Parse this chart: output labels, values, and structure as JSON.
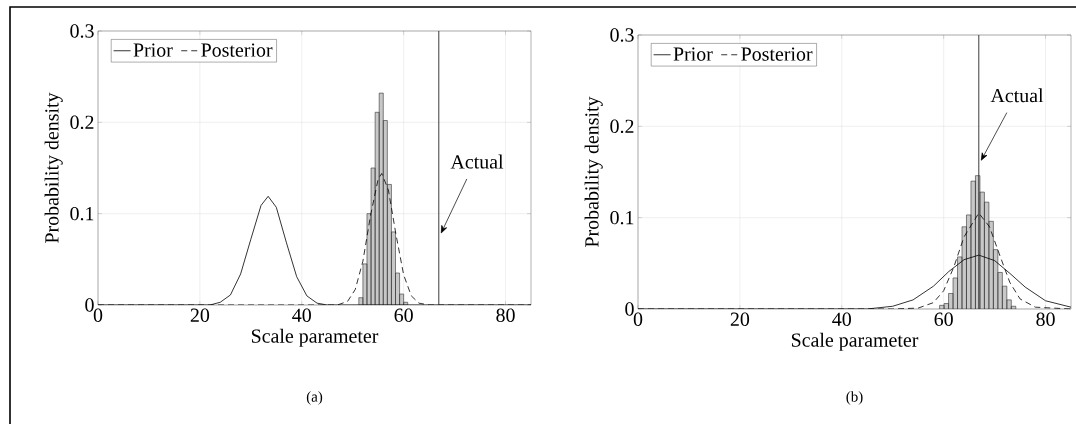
{
  "chart_data": [
    {
      "type": "histogram",
      "bins": [
        51.2,
        52.0,
        52.8,
        53.6,
        54.4,
        55.2,
        56.0,
        56.8,
        57.6,
        58.4,
        59.2,
        60.0,
        60.8
      ],
      "values": [
        0.008,
        0.045,
        0.1,
        0.15,
        0.211,
        0.232,
        0.202,
        0.132,
        0.08,
        0.035,
        0.012,
        0.003
      ],
      "color": "#c8c8c8",
      "series": [
        {
          "type": "line",
          "name": "Prior",
          "color": "#000000",
          "line_style": "solid",
          "x": [
            0,
            20,
            22,
            24,
            26,
            28,
            30,
            32,
            33.4,
            35,
            37,
            39,
            41,
            43,
            45,
            48,
            85
          ],
          "values": [
            0,
            0,
            0,
            0.003,
            0.011,
            0.034,
            0.072,
            0.109,
            0.119,
            0.107,
            0.068,
            0.031,
            0.01,
            0.002,
            0,
            0,
            0
          ]
        },
        {
          "type": "line",
          "name": "Posterior",
          "color": "#000000",
          "line_style": "dashed",
          "x": [
            0,
            45,
            47,
            49,
            50.5,
            52,
            53.5,
            55,
            55.7,
            57,
            58.5,
            60,
            61.5,
            63,
            65,
            85
          ],
          "values": [
            0,
            0,
            0,
            0.004,
            0.017,
            0.048,
            0.098,
            0.138,
            0.144,
            0.126,
            0.077,
            0.033,
            0.01,
            0.002,
            0,
            0
          ]
        }
      ],
      "ref_lines": [
        {
          "axis": "x",
          "value": 66.9,
          "label": "Actual"
        }
      ],
      "xlabel": "Scale parameter",
      "ylabel": "Probability density",
      "xlim": [
        0,
        85
      ],
      "ylim": [
        0,
        0.3
      ],
      "xticks": [
        0,
        20,
        40,
        60,
        80
      ],
      "yticks": [
        0,
        0.1,
        0.2,
        0.3
      ],
      "grid": true,
      "legend": "top left",
      "annotations": [
        "(a)"
      ]
    },
    {
      "type": "histogram",
      "bins": [
        59.2,
        60.08,
        60.96,
        61.84,
        62.72,
        63.6,
        64.48,
        65.36,
        66.24,
        67.12,
        68.0,
        68.88,
        69.76,
        70.64,
        71.52,
        72.4,
        73.28,
        74.16
      ],
      "values": [
        0.004,
        0.006,
        0.017,
        0.034,
        0.057,
        0.09,
        0.103,
        0.14,
        0.146,
        0.128,
        0.117,
        0.096,
        0.065,
        0.04,
        0.025,
        0.01,
        0.003
      ],
      "color": "#c8c8c8",
      "series": [
        {
          "type": "line",
          "name": "Prior",
          "color": "#000000",
          "line_style": "solid",
          "x": [
            0,
            40,
            45,
            50,
            54,
            58,
            61,
            64,
            66.9,
            70,
            73,
            76,
            80,
            85
          ],
          "values": [
            0,
            0,
            0,
            0.003,
            0.01,
            0.025,
            0.041,
            0.054,
            0.059,
            0.053,
            0.039,
            0.024,
            0.009,
            0.002
          ]
        },
        {
          "type": "line",
          "name": "Posterior",
          "color": "#000000",
          "line_style": "dashed",
          "x": [
            0,
            50,
            55,
            58,
            60,
            62,
            64,
            66.9,
            69,
            71,
            73,
            75,
            78,
            85
          ],
          "values": [
            0,
            0,
            0.001,
            0.007,
            0.02,
            0.046,
            0.079,
            0.105,
            0.09,
            0.059,
            0.029,
            0.011,
            0.002,
            0
          ]
        }
      ],
      "ref_lines": [
        {
          "axis": "x",
          "value": 66.9,
          "label": "Actual"
        }
      ],
      "xlabel": "Scale parameter",
      "ylabel": "Probability density",
      "xlim": [
        0,
        85
      ],
      "ylim": [
        0,
        0.3
      ],
      "xticks": [
        0,
        20,
        40,
        60,
        80
      ],
      "yticks": [
        0,
        0.1,
        0.2,
        0.3
      ],
      "grid": true,
      "legend": "top left",
      "annotations": [
        "(b)"
      ]
    }
  ]
}
